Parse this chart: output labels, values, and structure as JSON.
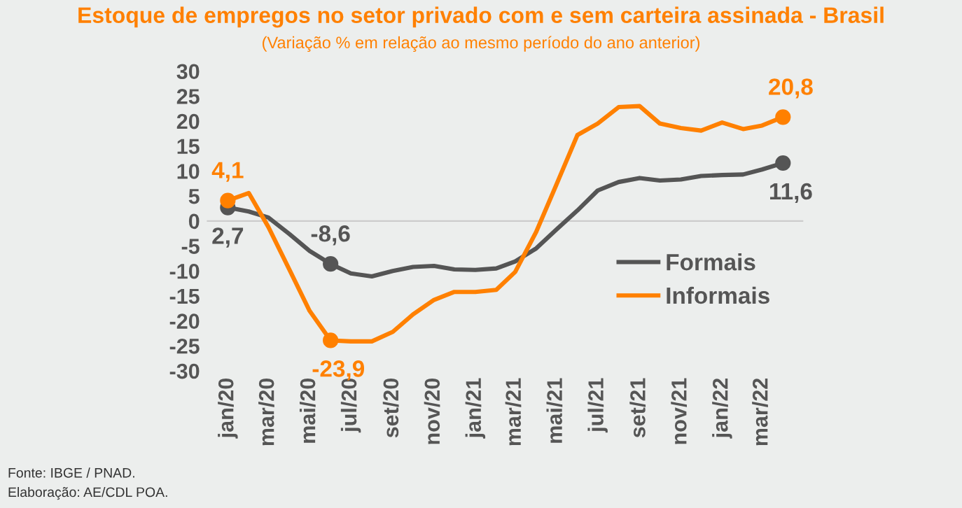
{
  "chart_data": {
    "type": "line",
    "title": "Estoque de empregos no setor privado com e sem carteira assinada - Brasil",
    "subtitle": "(Variação % em relação ao mesmo período do ano anterior)",
    "x": [
      "2020-01",
      "2020-02",
      "2020-03",
      "2020-04",
      "2020-05",
      "2020-06",
      "2020-07",
      "2020-08",
      "2020-09",
      "2020-10",
      "2020-11",
      "2020-12",
      "2021-01",
      "2021-02",
      "2021-03",
      "2021-04",
      "2021-05",
      "2021-06",
      "2021-07",
      "2021-08",
      "2021-09",
      "2021-10",
      "2021-11",
      "2021-12",
      "2022-01",
      "2022-02",
      "2022-03",
      "2022-04"
    ],
    "series": [
      {
        "name": "Formais",
        "color": "#555555",
        "values": [
          2.7,
          1.9,
          0.7,
          -2.6,
          -6.0,
          -8.6,
          -10.5,
          -11.1,
          -10.0,
          -9.2,
          -9.0,
          -9.7,
          -9.8,
          -9.5,
          -8.1,
          -5.5,
          -1.7,
          2.1,
          6.1,
          7.8,
          8.6,
          8.1,
          8.3,
          9.0,
          9.2,
          9.3,
          10.3,
          11.6
        ]
      },
      {
        "name": "Informais",
        "color": "#ff8000",
        "values": [
          4.1,
          5.6,
          -1.2,
          -9.7,
          -18.0,
          -23.9,
          -24.1,
          -24.1,
          -22.2,
          -18.7,
          -15.8,
          -14.2,
          -14.2,
          -13.8,
          -10.2,
          -2.2,
          7.3,
          17.2,
          19.5,
          22.8,
          23.0,
          19.5,
          18.6,
          18.1,
          19.7,
          18.4,
          19.1,
          20.8
        ]
      }
    ],
    "xlim": [
      "2019-12",
      "2022-05"
    ],
    "xticks": [
      {
        "value": "2020-01",
        "label": "jan/20"
      },
      {
        "value": "2020-03",
        "label": "mar/20"
      },
      {
        "value": "2020-05",
        "label": "mai/20"
      },
      {
        "value": "2020-07",
        "label": "jul/20"
      },
      {
        "value": "2020-09",
        "label": "set/20"
      },
      {
        "value": "2020-11",
        "label": "nov/20"
      },
      {
        "value": "2021-01",
        "label": "jan/21"
      },
      {
        "value": "2021-03",
        "label": "mar/21"
      },
      {
        "value": "2021-05",
        "label": "mai/21"
      },
      {
        "value": "2021-07",
        "label": "jul/21"
      },
      {
        "value": "2021-09",
        "label": "set/21"
      },
      {
        "value": "2021-11",
        "label": "nov/21"
      },
      {
        "value": "2022-01",
        "label": "jan/22"
      },
      {
        "value": "2022-03",
        "label": "mar/22"
      }
    ],
    "ylim": [
      -30,
      30
    ],
    "yticks": [
      -30,
      -25,
      -20,
      -15,
      -10,
      -5,
      0,
      5,
      10,
      15,
      20,
      25,
      30
    ],
    "ref_lines": [
      {
        "axis": "y",
        "value": 0,
        "color": "#cccccc"
      }
    ],
    "legend": "center right",
    "grid": false,
    "annotations": [
      {
        "text": "2,7",
        "x": "2020-01",
        "y": 2.7
      },
      {
        "text": "4,1",
        "x": "2020-01",
        "y": 4.1
      },
      {
        "text": "-8,6",
        "x": "2020-06",
        "y": -8.6
      },
      {
        "text": "-23,9",
        "x": "2020-06",
        "y": -23.9
      },
      {
        "text": "11,6",
        "x": "2022-04",
        "y": 11.6
      },
      {
        "text": "20,8",
        "x": "2022-04",
        "y": 20.8
      },
      "Fonte: IBGE / PNAD.",
      "Elaboração: AE/CDL POA."
    ]
  }
}
